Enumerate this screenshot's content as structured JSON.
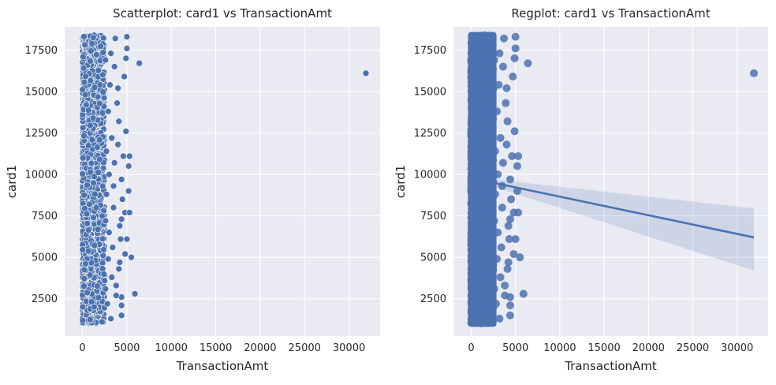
{
  "chart_data": [
    {
      "type": "scatter",
      "title": "Scatterplot: card1 vs TransactionAmt",
      "xlabel": "TransactionAmt",
      "ylabel": "card1",
      "xlim": [
        -2000,
        33500
      ],
      "ylim": [
        250,
        18900
      ],
      "xticks": [
        0,
        5000,
        10000,
        15000,
        20000,
        25000,
        30000
      ],
      "xtick_labels": [
        "0",
        "5000",
        "10000",
        "15000",
        "20000",
        "25000",
        "30000"
      ],
      "yticks": [
        2500,
        5000,
        7500,
        10000,
        12500,
        15000,
        17500
      ],
      "ytick_labels": [
        "2500",
        "5000",
        "7500",
        "10000",
        "12500",
        "15000",
        "17500"
      ],
      "grid": true,
      "point_color": "#4c72b0",
      "background": "#eaeaf2",
      "dense_band": {
        "x_range": [
          0,
          2500
        ],
        "y_range": [
          1000,
          18400
        ]
      },
      "points": [
        {
          "x": 31900,
          "y": 16100
        },
        {
          "x": 6400,
          "y": 16700
        },
        {
          "x": 5900,
          "y": 2800
        },
        {
          "x": 5000,
          "y": 18300
        },
        {
          "x": 5000,
          "y": 17600
        },
        {
          "x": 4700,
          "y": 15900
        },
        {
          "x": 4600,
          "y": 11100
        },
        {
          "x": 5300,
          "y": 11100
        },
        {
          "x": 5200,
          "y": 10500
        },
        {
          "x": 5200,
          "y": 9000
        },
        {
          "x": 4800,
          "y": 7700
        },
        {
          "x": 5300,
          "y": 7700
        },
        {
          "x": 5000,
          "y": 6100
        },
        {
          "x": 4800,
          "y": 5200
        },
        {
          "x": 5500,
          "y": 5000
        },
        {
          "x": 4400,
          "y": 2600
        },
        {
          "x": 4400,
          "y": 2100
        },
        {
          "x": 4400,
          "y": 1500
        },
        {
          "x": 4900,
          "y": 12600
        },
        {
          "x": 4900,
          "y": 17000
        },
        {
          "x": 4100,
          "y": 13200
        },
        {
          "x": 4400,
          "y": 9700
        },
        {
          "x": 4500,
          "y": 8500
        },
        {
          "x": 4400,
          "y": 7300
        },
        {
          "x": 4200,
          "y": 6900
        },
        {
          "x": 4300,
          "y": 6100
        },
        {
          "x": 4200,
          "y": 4700
        },
        {
          "x": 4100,
          "y": 4300
        },
        {
          "x": 4000,
          "y": 11800
        },
        {
          "x": 4000,
          "y": 15200
        },
        {
          "x": 3900,
          "y": 14300
        },
        {
          "x": 3800,
          "y": 3300
        },
        {
          "x": 3800,
          "y": 2700
        },
        {
          "x": 3700,
          "y": 18200
        },
        {
          "x": 3600,
          "y": 16500
        },
        {
          "x": 3600,
          "y": 10700
        },
        {
          "x": 3500,
          "y": 9300
        },
        {
          "x": 3500,
          "y": 8000
        },
        {
          "x": 3400,
          "y": 5600
        },
        {
          "x": 3300,
          "y": 12200
        },
        {
          "x": 3300,
          "y": 3800
        },
        {
          "x": 3200,
          "y": 1300
        },
        {
          "x": 3200,
          "y": 17300
        },
        {
          "x": 3100,
          "y": 15400
        },
        {
          "x": 3000,
          "y": 10000
        },
        {
          "x": 3000,
          "y": 6500
        },
        {
          "x": 2900,
          "y": 13800
        },
        {
          "x": 2900,
          "y": 4900
        },
        {
          "x": 2800,
          "y": 2200
        },
        {
          "x": 2700,
          "y": 11400
        },
        {
          "x": 2700,
          "y": 8800
        },
        {
          "x": 2600,
          "y": 16900
        },
        {
          "x": 2600,
          "y": 7200
        },
        {
          "x": 2600,
          "y": 3100
        }
      ]
    },
    {
      "type": "scatter",
      "title": "Regplot: card1 vs TransactionAmt",
      "xlabel": "TransactionAmt",
      "ylabel": "card1",
      "xlim": [
        -2000,
        33500
      ],
      "ylim": [
        250,
        18900
      ],
      "xticks": [
        0,
        5000,
        10000,
        15000,
        20000,
        25000,
        30000
      ],
      "xtick_labels": [
        "0",
        "5000",
        "10000",
        "15000",
        "20000",
        "25000",
        "30000"
      ],
      "yticks": [
        2500,
        5000,
        7500,
        10000,
        12500,
        15000,
        17500
      ],
      "ytick_labels": [
        "2500",
        "5000",
        "7500",
        "10000",
        "12500",
        "15000",
        "17500"
      ],
      "grid": true,
      "point_color": "#4c72b0",
      "background": "#eaeaf2",
      "dense_band": {
        "x_range": [
          0,
          2500
        ],
        "y_range": [
          1000,
          18400
        ]
      },
      "regression_line": {
        "x": [
          0,
          31900
        ],
        "y": [
          9780,
          6200
        ]
      },
      "confidence_band": {
        "x": [
          0,
          31900
        ],
        "upper": [
          9850,
          7950
        ],
        "lower": [
          9700,
          4200
        ]
      },
      "points": [
        {
          "x": 31900,
          "y": 16100
        },
        {
          "x": 6400,
          "y": 16700
        },
        {
          "x": 5900,
          "y": 2800
        },
        {
          "x": 5000,
          "y": 18300
        },
        {
          "x": 5000,
          "y": 17600
        },
        {
          "x": 4700,
          "y": 15900
        },
        {
          "x": 4600,
          "y": 11100
        },
        {
          "x": 5300,
          "y": 11100
        },
        {
          "x": 5200,
          "y": 10500
        },
        {
          "x": 5200,
          "y": 9000
        },
        {
          "x": 4800,
          "y": 7700
        },
        {
          "x": 5300,
          "y": 7700
        },
        {
          "x": 5000,
          "y": 6100
        },
        {
          "x": 4800,
          "y": 5200
        },
        {
          "x": 5500,
          "y": 5000
        },
        {
          "x": 4400,
          "y": 2600
        },
        {
          "x": 4400,
          "y": 2100
        },
        {
          "x": 4400,
          "y": 1500
        },
        {
          "x": 4900,
          "y": 12600
        },
        {
          "x": 4900,
          "y": 17000
        },
        {
          "x": 4100,
          "y": 13200
        },
        {
          "x": 4400,
          "y": 9700
        },
        {
          "x": 4500,
          "y": 8500
        },
        {
          "x": 4400,
          "y": 7300
        },
        {
          "x": 4200,
          "y": 6900
        },
        {
          "x": 4300,
          "y": 6100
        },
        {
          "x": 4200,
          "y": 4700
        },
        {
          "x": 4100,
          "y": 4300
        },
        {
          "x": 4000,
          "y": 11800
        },
        {
          "x": 4000,
          "y": 15200
        },
        {
          "x": 3900,
          "y": 14300
        },
        {
          "x": 3800,
          "y": 3300
        },
        {
          "x": 3800,
          "y": 2700
        },
        {
          "x": 3700,
          "y": 18200
        },
        {
          "x": 3600,
          "y": 16500
        },
        {
          "x": 3600,
          "y": 10700
        },
        {
          "x": 3500,
          "y": 9300
        },
        {
          "x": 3500,
          "y": 8000
        },
        {
          "x": 3400,
          "y": 5600
        },
        {
          "x": 3300,
          "y": 12200
        },
        {
          "x": 3300,
          "y": 3800
        },
        {
          "x": 3200,
          "y": 1300
        },
        {
          "x": 3200,
          "y": 17300
        },
        {
          "x": 3100,
          "y": 15400
        },
        {
          "x": 3000,
          "y": 10000
        },
        {
          "x": 3000,
          "y": 6500
        },
        {
          "x": 2900,
          "y": 13800
        },
        {
          "x": 2900,
          "y": 4900
        },
        {
          "x": 2800,
          "y": 2200
        },
        {
          "x": 2700,
          "y": 11400
        },
        {
          "x": 2700,
          "y": 8800
        },
        {
          "x": 2600,
          "y": 16900
        },
        {
          "x": 2600,
          "y": 7200
        },
        {
          "x": 2600,
          "y": 3100
        }
      ]
    }
  ]
}
